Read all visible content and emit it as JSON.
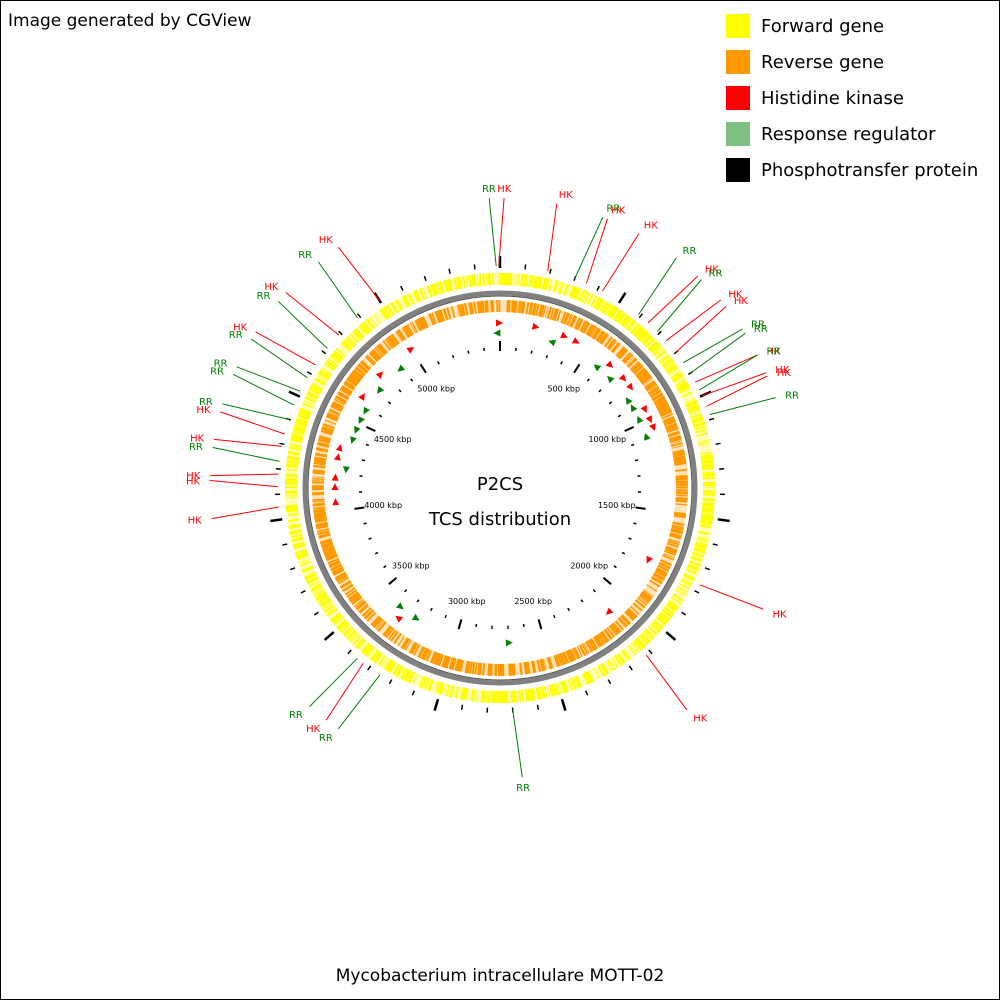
{
  "credit": "Image generated by CGView",
  "legend": [
    {
      "label": "Forward gene",
      "color": "#ffff00"
    },
    {
      "label": "Reverse gene",
      "color": "#ff9900"
    },
    {
      "label": "Histidine kinase",
      "color": "#ff0000"
    },
    {
      "label": "Response regulator",
      "color": "#80c080"
    },
    {
      "label": "Phosphotransfer protein",
      "color": "#000000"
    }
  ],
  "center": {
    "line1": "P2CS",
    "line2": "TCS distribution"
  },
  "genome_name": "Mycobacterium intracellulare MOTT-02",
  "genome_length_kbp": 5500,
  "ticks_labeled": [
    {
      "kbp": 500,
      "label": "500 kbp"
    },
    {
      "kbp": 1000,
      "label": "1000 kbp"
    },
    {
      "kbp": 1500,
      "label": "1500 kbp"
    },
    {
      "kbp": 2000,
      "label": "2000 kbp"
    },
    {
      "kbp": 2500,
      "label": "2500 kbp"
    },
    {
      "kbp": 3000,
      "label": "3000 kbp"
    },
    {
      "kbp": 3500,
      "label": "3500 kbp"
    },
    {
      "kbp": 4000,
      "label": "4000 kbp"
    },
    {
      "kbp": 4500,
      "label": "4500 kbp"
    },
    {
      "kbp": 5000,
      "label": "5000 kbp"
    }
  ],
  "features": [
    {
      "kbp": 5485,
      "label": "RR",
      "type": "RR"
    },
    {
      "kbp": 5495,
      "label": "HK",
      "type": "HK"
    },
    {
      "kbp": 190,
      "label": "HK",
      "type": "HK"
    },
    {
      "kbp": 300,
      "label": "RR",
      "type": "RR"
    },
    {
      "kbp": 350,
      "label": "HK",
      "type": "HK"
    },
    {
      "kbp": 420,
      "label": "HK",
      "type": "HK"
    },
    {
      "kbp": 590,
      "label": "RR",
      "type": "RR"
    },
    {
      "kbp": 640,
      "label": "HK",
      "type": "HK"
    },
    {
      "kbp": 690,
      "label": "RR",
      "type": "RR"
    },
    {
      "kbp": 740,
      "label": "HK",
      "type": "HK"
    },
    {
      "kbp": 800,
      "label": "HK",
      "type": "HK"
    },
    {
      "kbp": 850,
      "label": "RR",
      "type": "RR"
    },
    {
      "kbp": 900,
      "label": "RR",
      "type": "RR"
    },
    {
      "kbp": 940,
      "label": "HK",
      "type": "HK"
    },
    {
      "kbp": 975,
      "label": "RR",
      "type": "RR"
    },
    {
      "kbp": 1000,
      "label": "HK",
      "type": "HK"
    },
    {
      "kbp": 1045,
      "label": "HK",
      "type": "HK"
    },
    {
      "kbp": 1080,
      "label": "RR",
      "type": "RR"
    },
    {
      "kbp": 1770,
      "label": "HK",
      "type": "HK"
    },
    {
      "kbp": 2120,
      "label": "HK",
      "type": "HK"
    },
    {
      "kbp": 2700,
      "label": "RR",
      "type": "RR"
    },
    {
      "kbp": 3250,
      "label": "RR",
      "type": "RR"
    },
    {
      "kbp": 3330,
      "label": "HK",
      "type": "HK"
    },
    {
      "kbp": 3360,
      "label": "RR",
      "type": "RR"
    },
    {
      "kbp": 4050,
      "label": "HK",
      "type": "HK"
    },
    {
      "kbp": 4130,
      "label": "HK",
      "type": "HK"
    },
    {
      "kbp": 4180,
      "label": "HK",
      "type": "HK"
    },
    {
      "kbp": 4230,
      "label": "RR",
      "type": "RR"
    },
    {
      "kbp": 4290,
      "label": "HK",
      "type": "HK"
    },
    {
      "kbp": 4340,
      "label": "HK",
      "type": "HK"
    },
    {
      "kbp": 4400,
      "label": "RR",
      "type": "RR"
    },
    {
      "kbp": 4460,
      "label": "RR",
      "type": "RR"
    },
    {
      "kbp": 4520,
      "label": "RR",
      "type": "RR"
    },
    {
      "kbp": 4580,
      "label": "RR",
      "type": "RR"
    },
    {
      "kbp": 4640,
      "label": "HK",
      "type": "HK"
    },
    {
      "kbp": 4720,
      "label": "RR",
      "type": "RR"
    },
    {
      "kbp": 4790,
      "label": "HK",
      "type": "HK"
    },
    {
      "kbp": 4890,
      "label": "RR",
      "type": "RR"
    },
    {
      "kbp": 5000,
      "label": "HK",
      "type": "HK"
    }
  ]
}
